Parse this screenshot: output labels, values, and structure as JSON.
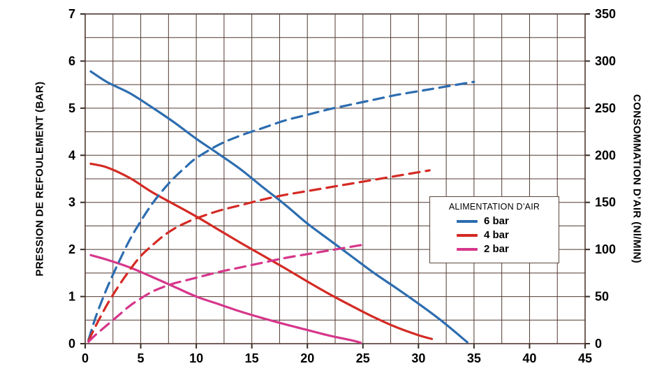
{
  "chart_data": {
    "type": "line",
    "title": "",
    "x_axis": {
      "label": "",
      "min": 0,
      "max": 45,
      "major_tick": 5,
      "minor_tick": 2.5,
      "tick_labels": [
        "0",
        "5",
        "10",
        "15",
        "20",
        "25",
        "30",
        "35",
        "40",
        "45"
      ]
    },
    "y_left": {
      "label": "PRESSION DE REFOULEMENT (BAR)",
      "min": 0,
      "max": 7,
      "major_tick": 1,
      "minor_tick": 0.5,
      "tick_labels": [
        "0",
        "1",
        "2",
        "3",
        "4",
        "5",
        "6",
        "7"
      ]
    },
    "y_right": {
      "label": "CONSOMMATION D’AIR (Nl/MIN)",
      "min": 0,
      "max": 350,
      "major_tick": 50,
      "minor_tick": 25,
      "tick_labels": [
        "0",
        "50",
        "100",
        "150",
        "200",
        "250",
        "300",
        "350"
      ]
    },
    "grid": {
      "on": true,
      "color": "#513931"
    },
    "legend": {
      "title": "ALIMENTATION D’AIR",
      "position": "middle-right",
      "entries": [
        {
          "label": "6 bar",
          "color": "#2d6db0"
        },
        {
          "label": "4 bar",
          "color": "#d42a24"
        },
        {
          "label": "2 bar",
          "color": "#d6368b"
        }
      ]
    },
    "series": [
      {
        "name": "6 bar - pression de refoulement",
        "axis": "left",
        "line": "solid",
        "color": "#2d6db0",
        "points": [
          [
            0.5,
            5.78
          ],
          [
            2,
            5.55
          ],
          [
            4,
            5.32
          ],
          [
            6,
            5.02
          ],
          [
            8,
            4.7
          ],
          [
            10,
            4.35
          ],
          [
            12,
            4.03
          ],
          [
            14,
            3.7
          ],
          [
            16,
            3.32
          ],
          [
            18,
            2.95
          ],
          [
            20,
            2.55
          ],
          [
            22,
            2.2
          ],
          [
            24,
            1.85
          ],
          [
            26,
            1.5
          ],
          [
            28,
            1.18
          ],
          [
            30,
            0.85
          ],
          [
            32,
            0.5
          ],
          [
            34.4,
            0.03
          ]
        ]
      },
      {
        "name": "4 bar - pression de refoulement",
        "axis": "left",
        "line": "solid",
        "color": "#d42a24",
        "points": [
          [
            0.5,
            3.82
          ],
          [
            2,
            3.74
          ],
          [
            4,
            3.52
          ],
          [
            6,
            3.22
          ],
          [
            8,
            2.96
          ],
          [
            10,
            2.7
          ],
          [
            12,
            2.42
          ],
          [
            14,
            2.14
          ],
          [
            16,
            1.87
          ],
          [
            18,
            1.6
          ],
          [
            20,
            1.32
          ],
          [
            22,
            1.05
          ],
          [
            24,
            0.8
          ],
          [
            26,
            0.56
          ],
          [
            28,
            0.35
          ],
          [
            30,
            0.18
          ],
          [
            31.2,
            0.1
          ]
        ]
      },
      {
        "name": "2 bar - pression de refoulement",
        "axis": "left",
        "line": "solid",
        "color": "#d6368b",
        "points": [
          [
            0.5,
            1.88
          ],
          [
            2,
            1.78
          ],
          [
            4,
            1.62
          ],
          [
            6,
            1.42
          ],
          [
            8,
            1.21
          ],
          [
            10,
            1.0
          ],
          [
            12,
            0.84
          ],
          [
            14,
            0.68
          ],
          [
            16,
            0.54
          ],
          [
            18,
            0.41
          ],
          [
            20,
            0.29
          ],
          [
            22,
            0.17
          ],
          [
            24,
            0.07
          ],
          [
            24.8,
            0.02
          ]
        ]
      },
      {
        "name": "6 bar - consommation d'air",
        "axis": "right",
        "line": "dashed",
        "color": "#2d6db0",
        "points": [
          [
            0.3,
            4
          ],
          [
            1,
            30
          ],
          [
            2,
            60
          ],
          [
            3,
            86
          ],
          [
            4,
            110
          ],
          [
            5,
            130
          ],
          [
            6,
            148
          ],
          [
            7,
            163
          ],
          [
            8,
            176
          ],
          [
            9,
            187
          ],
          [
            10,
            197
          ],
          [
            12,
            211
          ],
          [
            14,
            221
          ],
          [
            16,
            229
          ],
          [
            18,
            237
          ],
          [
            20,
            243
          ],
          [
            22,
            249
          ],
          [
            24,
            254
          ],
          [
            26,
            259
          ],
          [
            28,
            264
          ],
          [
            30,
            268
          ],
          [
            32,
            272
          ],
          [
            35,
            278
          ]
        ]
      },
      {
        "name": "4 bar - consommation d'air",
        "axis": "right",
        "line": "dashed",
        "color": "#d42a24",
        "points": [
          [
            0.3,
            3
          ],
          [
            1,
            20
          ],
          [
            2,
            42
          ],
          [
            3,
            61
          ],
          [
            4,
            78
          ],
          [
            5,
            93
          ],
          [
            6,
            104
          ],
          [
            7,
            114
          ],
          [
            8,
            122
          ],
          [
            9,
            128
          ],
          [
            10,
            133
          ],
          [
            12,
            141
          ],
          [
            14,
            147
          ],
          [
            16,
            153
          ],
          [
            18,
            158
          ],
          [
            20,
            162
          ],
          [
            22,
            166
          ],
          [
            24,
            170
          ],
          [
            26,
            174
          ],
          [
            28,
            178
          ],
          [
            31,
            184
          ]
        ]
      },
      {
        "name": "2 bar - consommation d'air",
        "axis": "right",
        "line": "dashed",
        "color": "#d6368b",
        "points": [
          [
            0.3,
            2
          ],
          [
            1,
            10
          ],
          [
            2,
            20
          ],
          [
            3,
            30
          ],
          [
            4,
            40
          ],
          [
            5,
            48
          ],
          [
            6,
            55
          ],
          [
            7,
            60
          ],
          [
            8,
            64
          ],
          [
            9,
            67
          ],
          [
            10,
            70
          ],
          [
            12,
            76
          ],
          [
            14,
            81
          ],
          [
            16,
            86
          ],
          [
            18,
            91
          ],
          [
            20,
            95
          ],
          [
            22,
            99
          ],
          [
            25,
            105
          ]
        ]
      }
    ]
  }
}
